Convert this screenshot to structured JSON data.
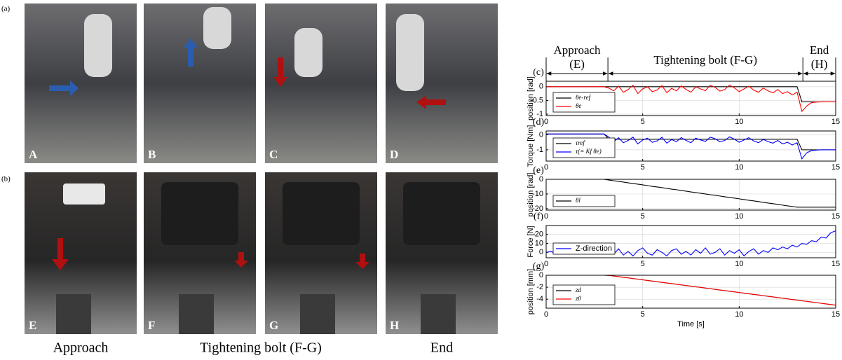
{
  "panel_labels": [
    "(a)",
    "(b)"
  ],
  "photos": [
    {
      "letter": "A"
    },
    {
      "letter": "B"
    },
    {
      "letter": "C"
    },
    {
      "letter": "D"
    },
    {
      "letter": "E"
    },
    {
      "letter": "F"
    },
    {
      "letter": "G"
    },
    {
      "letter": "H"
    }
  ],
  "captions": [
    "Approach",
    "Tightening bolt (F-G)",
    "End"
  ],
  "phases": {
    "items": [
      {
        "name": "Approach",
        "code": "(E)"
      },
      {
        "name": "Tightening bolt (F-G)"
      },
      {
        "name": "End",
        "code": "(H)"
      }
    ],
    "boundaries": [
      0,
      3.2,
      13.3,
      15
    ]
  },
  "chart_data": [
    {
      "type": "line",
      "panel": "(c)",
      "ylabel": "position [rad]",
      "xlim": [
        0,
        15
      ],
      "xticks": [
        0,
        5,
        10,
        15
      ],
      "ylim": [
        -1.05,
        0.2
      ],
      "yticks": [
        0,
        -0.5,
        -1
      ],
      "grid": true,
      "x": [
        0,
        0.25,
        0.5,
        0.75,
        1,
        1.25,
        1.5,
        1.75,
        2,
        2.25,
        2.5,
        2.75,
        3,
        3.25,
        3.5,
        3.75,
        4,
        4.25,
        4.5,
        4.75,
        5,
        5.25,
        5.5,
        5.75,
        6,
        6.25,
        6.5,
        6.75,
        7,
        7.25,
        7.5,
        7.75,
        8,
        8.25,
        8.5,
        8.75,
        9,
        9.25,
        9.5,
        9.75,
        10,
        10.25,
        10.5,
        10.75,
        11,
        11.25,
        11.5,
        11.75,
        12,
        12.25,
        12.5,
        12.75,
        13,
        13.25,
        13.5,
        13.75,
        14,
        14.25,
        14.5,
        14.75,
        15
      ],
      "series": [
        {
          "name": "θe-ref",
          "color": "#000000",
          "values": [
            0,
            0,
            0,
            0,
            0,
            0,
            0,
            0,
            0,
            0,
            0,
            0,
            0,
            0,
            0,
            0,
            0,
            0,
            0,
            0,
            0,
            0,
            0,
            0,
            0,
            0,
            0,
            0,
            0,
            0,
            0,
            0,
            0,
            0,
            0,
            0,
            0,
            0,
            0,
            0,
            0,
            0,
            0,
            0,
            0,
            0,
            0,
            0,
            0,
            0,
            0,
            0,
            0,
            -0.55,
            -0.55,
            -0.55,
            -0.55,
            -0.55,
            -0.55,
            -0.55,
            -0.55
          ]
        },
        {
          "name": "θe",
          "color": "#ff0000",
          "values": [
            0,
            0,
            0,
            0,
            0,
            0,
            0,
            0,
            0,
            0,
            0,
            0,
            0,
            -0.05,
            -0.15,
            0.02,
            -0.2,
            -0.1,
            0.05,
            -0.25,
            -0.08,
            0,
            -0.18,
            -0.12,
            0.04,
            -0.22,
            -0.06,
            -0.15,
            0.03,
            -0.1,
            -0.2,
            0,
            -0.08,
            -0.14,
            0.05,
            -0.02,
            -0.16,
            -0.1,
            0.06,
            -0.04,
            -0.18,
            -0.08,
            0.02,
            -0.12,
            -0.2,
            -0.05,
            -0.15,
            -0.22,
            -0.1,
            -0.25,
            -0.18,
            -0.3,
            -0.2,
            -0.9,
            -0.7,
            -0.58,
            -0.56,
            -0.55,
            -0.55,
            -0.55,
            -0.55
          ]
        }
      ]
    },
    {
      "type": "line",
      "panel": "(d)",
      "ylabel": "Torque [Nm]",
      "xlim": [
        0,
        15
      ],
      "xticks": [
        0,
        5,
        10,
        15
      ],
      "ylim": [
        -1.75,
        0.25
      ],
      "yticks": [
        0,
        -1
      ],
      "grid": true,
      "x": [
        0,
        0.25,
        0.5,
        0.75,
        1,
        1.25,
        1.5,
        1.75,
        2,
        2.25,
        2.5,
        2.75,
        3,
        3.25,
        3.5,
        3.75,
        4,
        4.25,
        4.5,
        4.75,
        5,
        5.25,
        5.5,
        5.75,
        6,
        6.25,
        6.5,
        6.75,
        7,
        7.25,
        7.5,
        7.75,
        8,
        8.25,
        8.5,
        8.75,
        9,
        9.25,
        9.5,
        9.75,
        10,
        10.25,
        10.5,
        10.75,
        11,
        11.25,
        11.5,
        11.75,
        12,
        12.25,
        12.5,
        12.75,
        13,
        13.25,
        13.5,
        13.75,
        14,
        14.25,
        14.5,
        14.75,
        15
      ],
      "series": [
        {
          "name": "τref",
          "color": "#000000",
          "values": [
            0.05,
            0.05,
            0.05,
            0.05,
            0.05,
            0.05,
            0.05,
            0.05,
            0.05,
            0.05,
            0.05,
            0.05,
            0.05,
            -0.3,
            -0.3,
            -0.3,
            -0.3,
            -0.3,
            -0.3,
            -0.3,
            -0.3,
            -0.3,
            -0.3,
            -0.3,
            -0.3,
            -0.3,
            -0.3,
            -0.3,
            -0.3,
            -0.3,
            -0.3,
            -0.3,
            -0.3,
            -0.3,
            -0.3,
            -0.3,
            -0.3,
            -0.3,
            -0.3,
            -0.3,
            -0.3,
            -0.3,
            -0.3,
            -0.3,
            -0.3,
            -0.3,
            -0.3,
            -0.3,
            -0.3,
            -0.3,
            -0.3,
            -0.3,
            -0.3,
            -1,
            -1,
            -1,
            -1,
            -1,
            -1,
            -1,
            -1
          ]
        },
        {
          "name": "τ(= Kf θe)",
          "color": "#0000ff",
          "values": [
            0.05,
            0.05,
            0.05,
            0.05,
            0.05,
            0.05,
            0.05,
            0.05,
            0.05,
            0.05,
            0.05,
            0.05,
            0.05,
            -0.16,
            -0.46,
            -0.2,
            -0.53,
            -0.38,
            -0.16,
            -0.61,
            -0.35,
            -0.23,
            -0.5,
            -0.41,
            -0.17,
            -0.56,
            -0.32,
            -0.46,
            -0.19,
            -0.38,
            -0.53,
            -0.23,
            -0.35,
            -0.44,
            -0.16,
            -0.26,
            -0.47,
            -0.38,
            -0.14,
            -0.29,
            -0.5,
            -0.35,
            -0.2,
            -0.41,
            -0.53,
            -0.31,
            -0.46,
            -0.56,
            -0.38,
            -0.61,
            -0.5,
            -0.68,
            -0.53,
            -1.6,
            -1.2,
            -1.05,
            -1.02,
            -1,
            -1,
            -1,
            -1
          ]
        }
      ]
    },
    {
      "type": "line",
      "panel": "(e)",
      "ylabel": "position [rad]",
      "xlim": [
        0,
        15
      ],
      "xticks": [
        0,
        5,
        10,
        15
      ],
      "ylim": [
        -21,
        0
      ],
      "yticks": [
        0,
        -10,
        -20
      ],
      "grid": true,
      "x": [
        0,
        0.25,
        0.5,
        0.75,
        1,
        1.25,
        1.5,
        1.75,
        2,
        2.25,
        2.5,
        2.75,
        3,
        3.25,
        3.5,
        3.75,
        4,
        4.25,
        4.5,
        4.75,
        5,
        5.25,
        5.5,
        5.75,
        6,
        6.25,
        6.5,
        6.75,
        7,
        7.25,
        7.5,
        7.75,
        8,
        8.25,
        8.5,
        8.75,
        9,
        9.25,
        9.5,
        9.75,
        10,
        10.25,
        10.5,
        10.75,
        11,
        11.25,
        11.5,
        11.75,
        12,
        12.25,
        12.5,
        12.75,
        13,
        13.25,
        13.5,
        13.75,
        14,
        14.25,
        14.5,
        14.75,
        15
      ],
      "series": [
        {
          "name": "θl",
          "color": "#000000",
          "values": [
            0,
            0,
            0,
            0,
            0,
            0,
            0,
            0,
            0,
            0,
            0,
            0,
            0,
            -0.5,
            -1,
            -1.4,
            -1.9,
            -2.4,
            -2.9,
            -3.3,
            -3.8,
            -4.3,
            -4.8,
            -5.2,
            -5.7,
            -6.2,
            -6.7,
            -7.1,
            -7.6,
            -8.1,
            -8.6,
            -9,
            -9.5,
            -10,
            -10.5,
            -10.9,
            -11.4,
            -11.9,
            -12.4,
            -12.8,
            -13.3,
            -13.8,
            -14.3,
            -14.7,
            -15.2,
            -15.7,
            -16.2,
            -16.6,
            -17.1,
            -17.6,
            -18.1,
            -18.5,
            -19,
            -19,
            -19,
            -19,
            -19,
            -19,
            -19,
            -19,
            -19
          ]
        }
      ]
    },
    {
      "type": "line",
      "panel": "(f)",
      "ylabel": "Force [N]",
      "xlim": [
        0,
        15
      ],
      "xticks": [
        0,
        5,
        10,
        15
      ],
      "ylim": [
        -6,
        30
      ],
      "yticks": [
        0,
        10,
        20
      ],
      "grid": true,
      "x": [
        0,
        0.25,
        0.5,
        0.75,
        1,
        1.25,
        1.5,
        1.75,
        2,
        2.25,
        2.5,
        2.75,
        3,
        3.25,
        3.5,
        3.75,
        4,
        4.25,
        4.5,
        4.75,
        5,
        5.25,
        5.5,
        5.75,
        6,
        6.25,
        6.5,
        6.75,
        7,
        7.25,
        7.5,
        7.75,
        8,
        8.25,
        8.5,
        8.75,
        9,
        9.25,
        9.5,
        9.75,
        10,
        10.25,
        10.5,
        10.75,
        11,
        11.25,
        11.5,
        11.75,
        12,
        12.25,
        12.5,
        12.75,
        13,
        13.25,
        13.5,
        13.75,
        14,
        14.25,
        14.5,
        14.75,
        15
      ],
      "series": [
        {
          "name": "Z-direction",
          "color": "#0000ff",
          "values": [
            0,
            1,
            -1,
            0.5,
            0,
            -0.5,
            1,
            0,
            -1,
            0.5,
            0,
            1,
            -0.5,
            3,
            -2,
            4,
            -3,
            1,
            -4,
            2,
            5,
            -1,
            -3,
            3,
            0,
            -4,
            2,
            4,
            -2,
            1,
            -3,
            3,
            -1,
            5,
            -2,
            0,
            4,
            -3,
            2,
            -1,
            3,
            -4,
            1,
            4,
            -2,
            2,
            0,
            5,
            3,
            6,
            4,
            8,
            6,
            10,
            9,
            13,
            12,
            17,
            16,
            22,
            24
          ]
        }
      ]
    },
    {
      "type": "line",
      "panel": "(g)",
      "ylabel": "position [mm]",
      "xlabel": "Time [s]",
      "xlim": [
        0,
        15
      ],
      "xticks": [
        0,
        5,
        10,
        15
      ],
      "ylim": [
        -5.5,
        0
      ],
      "yticks": [
        0,
        -2,
        -4
      ],
      "grid": true,
      "x": [
        0,
        0.25,
        0.5,
        0.75,
        1,
        1.25,
        1.5,
        1.75,
        2,
        2.25,
        2.5,
        2.75,
        3,
        3.25,
        3.5,
        3.75,
        4,
        4.25,
        4.5,
        4.75,
        5,
        5.25,
        5.5,
        5.75,
        6,
        6.25,
        6.5,
        6.75,
        7,
        7.25,
        7.5,
        7.75,
        8,
        8.25,
        8.5,
        8.75,
        9,
        9.25,
        9.5,
        9.75,
        10,
        10.25,
        10.5,
        10.75,
        11,
        11.25,
        11.5,
        11.75,
        12,
        12.25,
        12.5,
        12.75,
        13,
        13.25,
        13.5,
        13.75,
        14,
        14.25,
        14.5,
        14.75,
        15
      ],
      "series": [
        {
          "name": "zd",
          "color": "#000000",
          "values": [
            0,
            0,
            0,
            0,
            0,
            0,
            0,
            0,
            0,
            0,
            0,
            0,
            0,
            -0.02,
            -0.13,
            -0.23,
            -0.34,
            -0.44,
            -0.55,
            -0.66,
            -0.76,
            -0.87,
            -0.97,
            -1.08,
            -1.19,
            -1.29,
            -1.4,
            -1.5,
            -1.61,
            -1.72,
            -1.82,
            -1.93,
            -2.03,
            -2.14,
            -2.24,
            -2.35,
            -2.46,
            -2.56,
            -2.67,
            -2.77,
            -2.88,
            -2.99,
            -3.09,
            -3.2,
            -3.3,
            -3.41,
            -3.52,
            -3.62,
            -3.73,
            -3.83,
            -3.94,
            -4.05,
            -4.15,
            -4.26,
            -4.36,
            -4.47,
            -4.58,
            -4.68,
            -4.79,
            -4.89,
            -5
          ]
        },
        {
          "name": "z0",
          "color": "#ff0000",
          "values": [
            0,
            0,
            0,
            0,
            0,
            0,
            0,
            0,
            0,
            0,
            0,
            0,
            0,
            -0.02,
            -0.13,
            -0.23,
            -0.34,
            -0.44,
            -0.55,
            -0.66,
            -0.76,
            -0.87,
            -0.97,
            -1.08,
            -1.19,
            -1.29,
            -1.4,
            -1.5,
            -1.61,
            -1.72,
            -1.82,
            -1.93,
            -2.03,
            -2.14,
            -2.24,
            -2.35,
            -2.46,
            -2.56,
            -2.67,
            -2.77,
            -2.88,
            -2.99,
            -3.09,
            -3.2,
            -3.3,
            -3.41,
            -3.52,
            -3.62,
            -3.73,
            -3.83,
            -3.94,
            -4.05,
            -4.15,
            -4.26,
            -4.36,
            -4.47,
            -4.58,
            -4.68,
            -4.79,
            -4.89,
            -5
          ]
        }
      ]
    }
  ]
}
